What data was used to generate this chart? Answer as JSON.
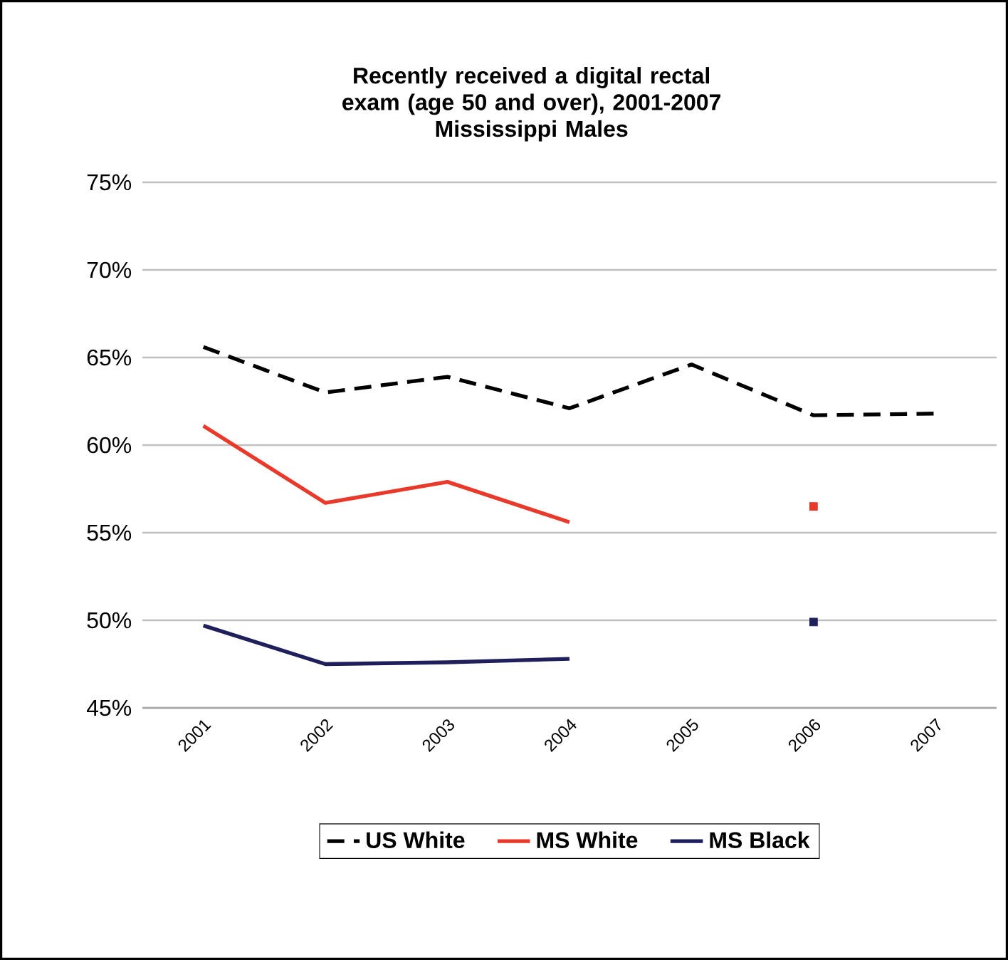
{
  "chart_data": {
    "type": "line",
    "title": "Recently received a digital rectal exam (age 50 and over), 2001-2007",
    "subtitle": "Mississippi Males",
    "categories": [
      "2001",
      "2002",
      "2003",
      "2004",
      "2005",
      "2006",
      "2007"
    ],
    "series": [
      {
        "name": "US White",
        "color": "#000000",
        "line_style": "dashed",
        "values": [
          65.6,
          63.0,
          63.9,
          62.1,
          64.6,
          61.7,
          61.8
        ]
      },
      {
        "name": "MS White",
        "color": "#e8392b",
        "line_style": "solid",
        "values": [
          61.1,
          56.7,
          57.9,
          55.6,
          null,
          56.5,
          null
        ]
      },
      {
        "name": "MS Black",
        "color": "#1f1f5c",
        "line_style": "solid",
        "values": [
          49.7,
          47.5,
          47.6,
          47.8,
          null,
          49.9,
          null
        ]
      }
    ],
    "ylim": [
      45,
      75
    ],
    "yticks": [
      {
        "value": 45,
        "label": "45%"
      },
      {
        "value": 50,
        "label": "50%"
      },
      {
        "value": 55,
        "label": "55%"
      },
      {
        "value": 60,
        "label": "60%"
      },
      {
        "value": 65,
        "label": "65%"
      },
      {
        "value": 70,
        "label": "70%"
      },
      {
        "value": 75,
        "label": "75%"
      }
    ],
    "grid": "y",
    "legend": "bottom",
    "marker": "none"
  }
}
